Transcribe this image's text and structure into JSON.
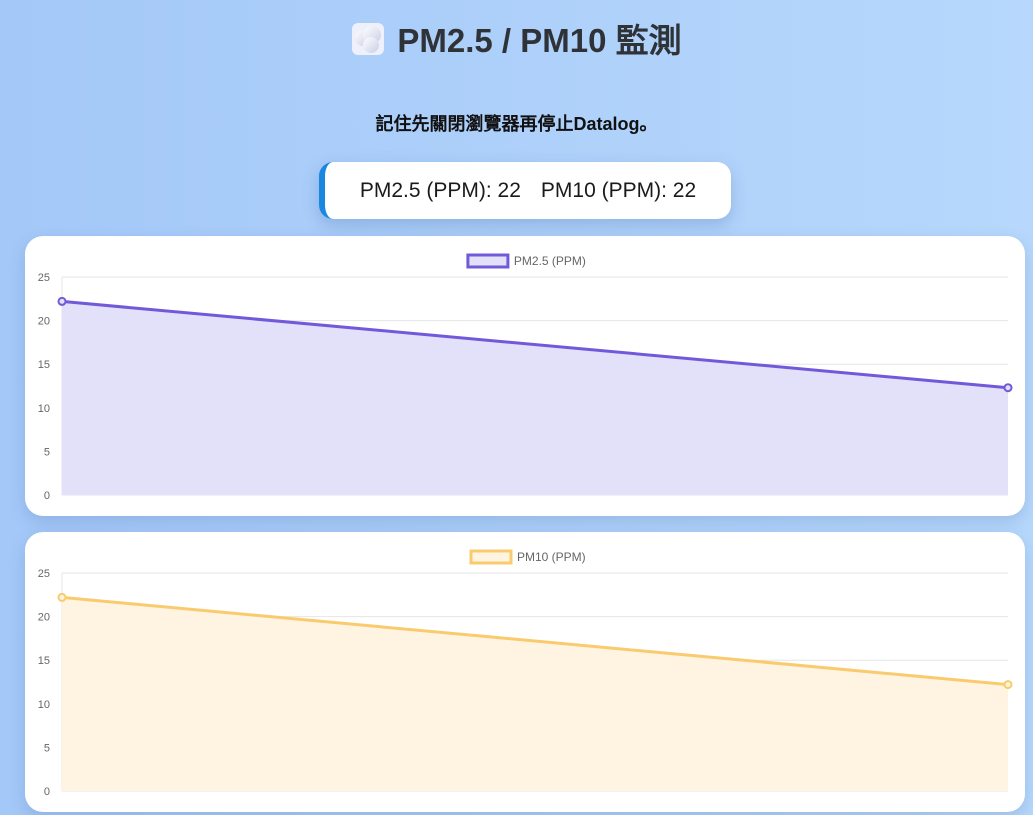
{
  "header": {
    "title": "PM2.5 / PM10 監測",
    "title_icon": "cloud-icon",
    "subtitle": "記住先關閉瀏覽器再停止Datalog。"
  },
  "readout": {
    "pm25_label": "PM2.5 (PPM):",
    "pm25_value": "22",
    "pm10_label": "PM10 (PPM):",
    "pm10_value": "22"
  },
  "colors": {
    "pm25_line": "#7159da",
    "pm25_fill": "#e3e0fa",
    "pm10_line": "#f9cb6e",
    "pm10_fill": "#fff4e1",
    "readout_accent": "#1a87e0"
  },
  "chart_data": [
    {
      "type": "line",
      "title": "",
      "xlabel": "",
      "ylabel": "",
      "x": [
        0,
        1
      ],
      "series": [
        {
          "name": "PM2.5 (PPM)",
          "values": [
            22.2,
            12.3
          ]
        }
      ],
      "ylim": [
        0,
        25
      ],
      "yticks": [
        "0",
        "5",
        "10",
        "15",
        "20",
        "25"
      ],
      "grid": true,
      "legend": "top-center",
      "fill": true
    },
    {
      "type": "line",
      "title": "",
      "xlabel": "",
      "ylabel": "",
      "x": [
        0,
        1
      ],
      "series": [
        {
          "name": "PM10 (PPM)",
          "values": [
            22.2,
            12.2
          ]
        }
      ],
      "ylim": [
        0,
        25
      ],
      "yticks": [
        "0",
        "5",
        "10",
        "15",
        "20",
        "25"
      ],
      "grid": true,
      "legend": "top-center",
      "fill": true
    }
  ]
}
